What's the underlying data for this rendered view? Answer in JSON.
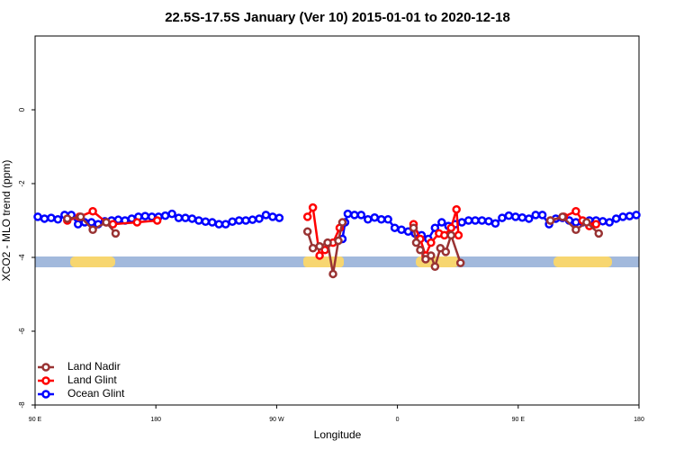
{
  "chart_data": {
    "type": "line",
    "title": "22.5S-17.5S January (Ver 10)   2015-01-01 to 2020-12-18",
    "x_label": "Longitude",
    "y_label": "XCO2 - MLO trend (ppm)",
    "xlim": [
      90,
      540
    ],
    "xticks": [
      {
        "value": 90,
        "label": "90 E"
      },
      {
        "value": 180,
        "label": "180"
      },
      {
        "value": 270,
        "label": "90 W"
      },
      {
        "value": 360,
        "label": "0"
      },
      {
        "value": 450,
        "label": "90 E"
      },
      {
        "value": 540,
        "label": "180"
      }
    ],
    "ylim": [
      -8,
      2
    ],
    "yticks": [
      -8,
      -6,
      -4,
      -2,
      0
    ],
    "legend": "bottom-left",
    "series": [
      {
        "name": "Land Nadir",
        "color": "#993333",
        "x": [
          114,
          124,
          133,
          143,
          150,
          null,
          293,
          297,
          302,
          308,
          312,
          316,
          319,
          null,
          372,
          374,
          377,
          381,
          385,
          388,
          392,
          396,
          400,
          407,
          null,
          474,
          483,
          493,
          501,
          510
        ],
        "values": [
          -2.95,
          -2.9,
          -3.25,
          -3.05,
          -3.35,
          null,
          -3.3,
          -3.75,
          -3.7,
          -3.6,
          -4.45,
          -3.55,
          -3.05,
          null,
          -3.2,
          -3.6,
          -3.8,
          -4.05,
          -3.95,
          -4.25,
          -3.75,
          -3.85,
          -3.4,
          -4.15,
          null,
          -3.0,
          -2.9,
          -3.25,
          -3.05,
          -3.35
        ]
      },
      {
        "name": "Land Glint",
        "color": "#ff0000",
        "x": [
          114,
          123,
          133,
          143,
          148,
          166,
          181,
          null,
          293,
          297,
          302,
          306,
          312,
          317,
          null,
          372,
          377,
          381,
          385,
          391,
          395,
          400,
          404,
          405.5,
          null,
          474,
          484,
          493,
          498,
          503,
          508
        ],
        "values": [
          -3.0,
          -2.9,
          -2.75,
          -3.05,
          -3.1,
          -3.05,
          -3.0,
          null,
          -2.9,
          -2.65,
          -3.95,
          -3.8,
          -3.6,
          -3.2,
          null,
          -3.1,
          -3.5,
          -3.95,
          -3.6,
          -3.35,
          -3.4,
          -3.2,
          -2.7,
          -3.4,
          null,
          -3.0,
          -2.9,
          -2.75,
          -3.0,
          -3.15,
          -3.1
        ]
      },
      {
        "name": "Ocean Glint",
        "color": "#0000ff",
        "x": [
          92,
          97,
          102,
          107,
          112,
          117,
          122,
          127,
          132,
          137,
          142,
          147,
          152,
          157,
          162,
          167,
          172,
          177,
          182,
          187,
          192,
          197,
          202,
          207,
          212,
          217,
          222,
          227,
          232,
          237,
          242,
          247,
          252,
          257,
          262,
          267,
          272,
          null,
          319,
          321,
          323,
          328,
          333,
          338,
          343,
          348,
          353,
          358,
          363,
          368,
          373,
          378,
          383,
          388,
          393,
          398,
          403,
          408,
          413,
          418,
          423,
          428,
          433,
          438,
          443,
          448,
          453,
          458,
          463,
          468,
          473,
          478,
          483,
          488,
          493,
          498,
          503,
          508,
          513,
          518,
          523,
          528,
          533,
          538
        ],
        "values": [
          -2.9,
          -2.95,
          -2.93,
          -2.97,
          -2.85,
          -2.85,
          -3.1,
          -3.05,
          -3.05,
          -3.1,
          -3.02,
          -3.0,
          -2.98,
          -3.0,
          -2.95,
          -2.9,
          -2.88,
          -2.9,
          -2.9,
          -2.87,
          -2.82,
          -2.93,
          -2.93,
          -2.95,
          -3.0,
          -3.03,
          -3.05,
          -3.1,
          -3.1,
          -3.03,
          -3.0,
          -3.0,
          -2.98,
          -2.95,
          -2.85,
          -2.9,
          -2.93,
          null,
          -3.5,
          -3.05,
          -2.82,
          -2.85,
          -2.85,
          -2.97,
          -2.92,
          -2.97,
          -2.97,
          -3.2,
          -3.25,
          -3.3,
          -3.35,
          -3.4,
          -3.5,
          -3.2,
          -3.05,
          -3.15,
          -3.1,
          -3.05,
          -3.0,
          -3.0,
          -3.0,
          -3.02,
          -3.08,
          -2.93,
          -2.87,
          -2.9,
          -2.92,
          -2.95,
          -2.85,
          -2.85,
          -3.1,
          -2.95,
          -2.93,
          -3.0,
          -3.05,
          -3.05,
          -3.0,
          -3.0,
          -3.02,
          -3.05,
          -2.95,
          -2.9,
          -2.88,
          -2.85
        ]
      }
    ]
  }
}
